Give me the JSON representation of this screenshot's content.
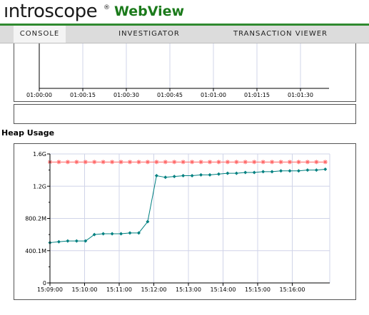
{
  "header": {
    "logo": "ıntroscope",
    "logo_mark": "®",
    "product": "WebView"
  },
  "tabs": [
    {
      "label": "CONSOLE",
      "active": true
    },
    {
      "label": "INVESTIGATOR",
      "active": false
    },
    {
      "label": "TRANSACTION VIEWER",
      "active": false
    }
  ],
  "colors": {
    "brand_green": "#2f8a2f",
    "series_current": "#008080",
    "series_max": "#ff6666",
    "grid": "#d0d4e8"
  },
  "top_chart": {
    "x_ticks": [
      "01:00:00",
      "01:00:15",
      "01:00:30",
      "01:00:45",
      "01:01:00",
      "01:01:15",
      "01:01:30"
    ]
  },
  "heap": {
    "title": "Heap Usage"
  },
  "chart_data": {
    "type": "line",
    "title": "Heap Usage",
    "xlabel": "",
    "ylabel": "",
    "x_ticks": [
      "15:09:00",
      "15:10:00",
      "15:11:00",
      "15:12:00",
      "15:13:00",
      "15:14:00",
      "15:15:00",
      "15:16:00"
    ],
    "y_ticks": [
      "0",
      "400.1M",
      "800.2M",
      "1.2G",
      "1.6G"
    ],
    "ylim": [
      0,
      1.6
    ],
    "y_unit": "G",
    "grid": true,
    "series": [
      {
        "marker": "asterisk",
        "color": "#ff6666",
        "values": [
          1.5,
          1.5,
          1.5,
          1.5,
          1.5,
          1.5,
          1.5,
          1.5,
          1.5,
          1.5,
          1.5,
          1.5,
          1.5,
          1.5,
          1.5,
          1.5,
          1.5,
          1.5,
          1.5,
          1.5,
          1.5,
          1.5,
          1.5,
          1.5,
          1.5,
          1.5,
          1.5,
          1.5,
          1.5,
          1.5,
          1.5,
          1.5
        ]
      },
      {
        "marker": "diamond",
        "color": "#008080",
        "values": [
          0.5,
          0.51,
          0.52,
          0.52,
          0.52,
          0.6,
          0.61,
          0.61,
          0.61,
          0.62,
          0.62,
          0.76,
          1.33,
          1.31,
          1.32,
          1.33,
          1.33,
          1.34,
          1.34,
          1.35,
          1.36,
          1.36,
          1.37,
          1.37,
          1.38,
          1.38,
          1.39,
          1.39,
          1.39,
          1.4,
          1.4,
          1.41
        ]
      }
    ]
  }
}
